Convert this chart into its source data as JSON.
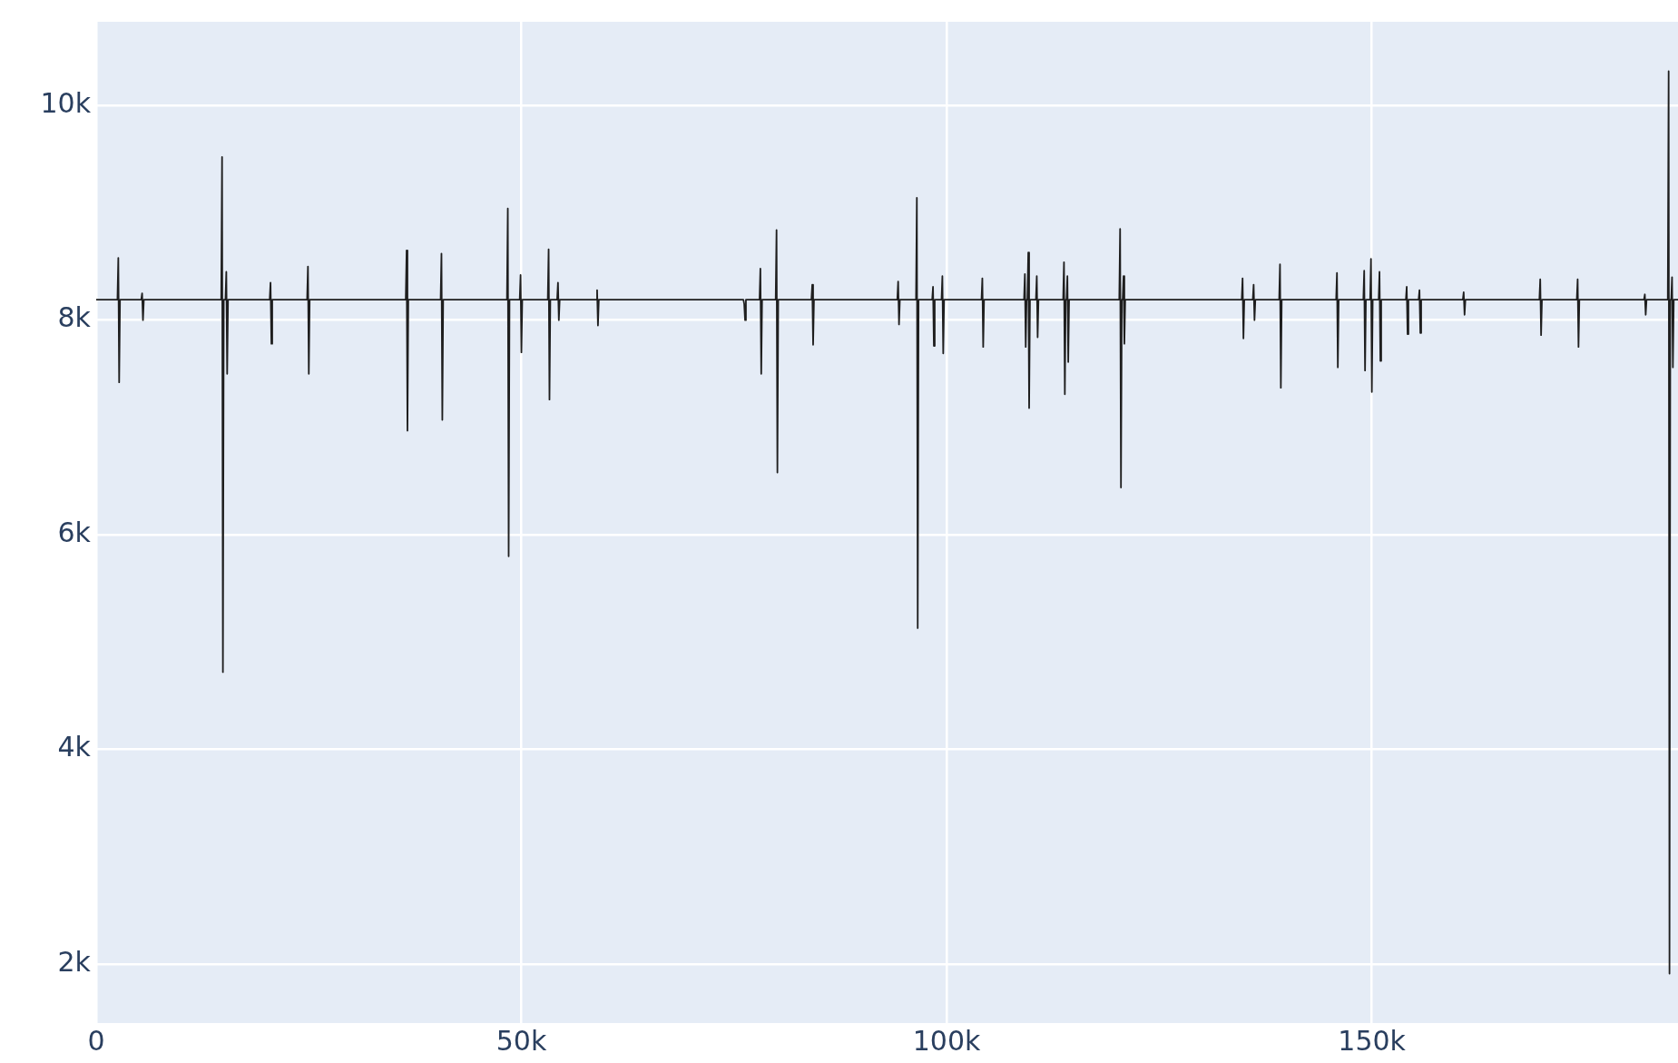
{
  "chart_data": {
    "type": "line",
    "marker": "none",
    "line_style": "solid",
    "grid": true,
    "legend": false,
    "xlim": [
      0,
      186000
    ],
    "ylim": [
      1450,
      10780
    ],
    "xticks": [
      {
        "value": 0,
        "label": "0"
      },
      {
        "value": 50000,
        "label": "50k"
      },
      {
        "value": 100000,
        "label": "100k"
      },
      {
        "value": 150000,
        "label": "150k"
      }
    ],
    "yticks": [
      {
        "value": 2000,
        "label": "2k"
      },
      {
        "value": 4000,
        "label": "4k"
      },
      {
        "value": 6000,
        "label": "6k"
      },
      {
        "value": 8000,
        "label": "8k"
      },
      {
        "value": 10000,
        "label": "10k"
      }
    ],
    "series": [
      {
        "color": "#1e1e1e",
        "x": [
          0,
          2500,
          2600,
          2700,
          2800,
          5300,
          5400,
          5500,
          5600,
          14700,
          14800,
          14900,
          15000,
          15200,
          15300,
          15400,
          15500,
          20400,
          20500,
          20600,
          20700,
          24800,
          24900,
          25000,
          25100,
          36400,
          36500,
          36600,
          36700,
          40500,
          40600,
          40700,
          40800,
          48300,
          48400,
          48500,
          48600,
          49800,
          49900,
          50000,
          50100,
          53100,
          53200,
          53300,
          53400,
          54200,
          54300,
          54400,
          54500,
          58800,
          58900,
          59000,
          59100,
          76100,
          76200,
          76300,
          76400,
          78000,
          78100,
          78200,
          78300,
          79900,
          80000,
          80100,
          80200,
          84100,
          84200,
          84300,
          84400,
          94200,
          94300,
          94400,
          94500,
          96400,
          96500,
          96600,
          96700,
          98300,
          98400,
          98500,
          98600,
          99400,
          99500,
          99600,
          99700,
          104100,
          104200,
          104300,
          104400,
          109100,
          109200,
          109300,
          109400,
          109500,
          109600,
          109700,
          109800,
          110500,
          110600,
          110700,
          110800,
          113700,
          113800,
          113900,
          114000,
          114100,
          114200,
          114300,
          114400,
          120300,
          120400,
          120500,
          120600,
          120700,
          120800,
          120900,
          121000,
          134700,
          134800,
          134900,
          135000,
          136000,
          136100,
          136200,
          136300,
          139100,
          139200,
          139300,
          139400,
          145800,
          145900,
          146000,
          146100,
          149000,
          149100,
          149200,
          149300,
          149800,
          149900,
          150000,
          150100,
          150800,
          150900,
          151000,
          151100,
          154000,
          154100,
          154200,
          154300,
          155500,
          155600,
          155700,
          155800,
          160700,
          160800,
          160900,
          161000,
          169700,
          169800,
          169900,
          170000,
          174100,
          174200,
          174300,
          174400,
          182000,
          182100,
          182200,
          182300,
          184800,
          184900,
          185000,
          185100,
          185200,
          185300,
          185400,
          185500,
          186000
        ],
        "values": [
          8190,
          8190,
          8580,
          7420,
          8190,
          8190,
          8250,
          8000,
          8190,
          8190,
          9520,
          4720,
          8190,
          8190,
          8450,
          7500,
          8190,
          8190,
          8350,
          7780,
          8190,
          8190,
          8500,
          7500,
          8190,
          8190,
          8650,
          6970,
          8190,
          8190,
          8620,
          7070,
          8190,
          8190,
          9040,
          5800,
          8190,
          8190,
          8420,
          7700,
          8190,
          8190,
          8660,
          7260,
          8190,
          8190,
          8350,
          8000,
          8190,
          8190,
          8280,
          7950,
          8190,
          8190,
          8150,
          8000,
          8190,
          8190,
          8480,
          7500,
          8190,
          8190,
          8840,
          6580,
          8190,
          8190,
          8330,
          7770,
          8190,
          8190,
          8360,
          7960,
          8190,
          8190,
          9140,
          5130,
          8190,
          8190,
          8310,
          7760,
          8190,
          8190,
          8410,
          7690,
          8190,
          8190,
          8390,
          7750,
          8190,
          8190,
          8430,
          7750,
          8190,
          8190,
          8630,
          7180,
          8190,
          8190,
          8410,
          7840,
          8190,
          8190,
          8540,
          7310,
          8190,
          8190,
          8410,
          7610,
          8190,
          8190,
          8850,
          6440,
          8190,
          8190,
          8410,
          7780,
          8190,
          8190,
          8390,
          7830,
          8190,
          8190,
          8330,
          8000,
          8190,
          8190,
          8520,
          7370,
          8190,
          8190,
          8440,
          7560,
          8190,
          8190,
          8460,
          7530,
          8190,
          8190,
          8570,
          7330,
          8190,
          8190,
          8450,
          7620,
          8190,
          8190,
          8310,
          7870,
          8190,
          8190,
          8280,
          7880,
          8190,
          8190,
          8260,
          8050,
          8190,
          8190,
          8380,
          7860,
          8190,
          8190,
          8380,
          7750,
          8190,
          8190,
          8240,
          8050,
          8190,
          8190,
          10320,
          1910,
          8190,
          8190,
          8400,
          7560,
          8190,
          8190
        ]
      }
    ]
  }
}
